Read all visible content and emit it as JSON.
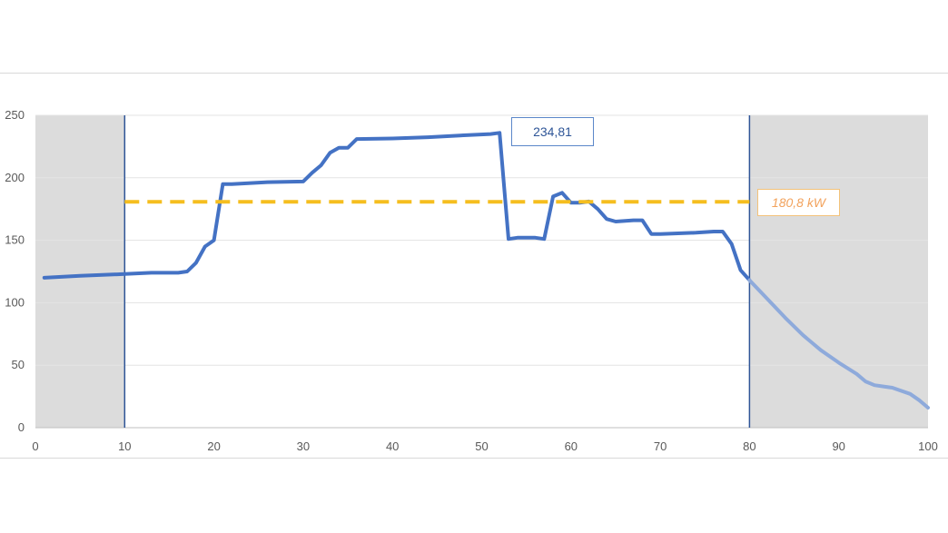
{
  "chart_data": {
    "type": "line",
    "xlim": [
      0,
      100
    ],
    "ylim": [
      0,
      250
    ],
    "x_ticks": [
      0,
      10,
      20,
      30,
      40,
      50,
      60,
      70,
      80,
      90,
      100
    ],
    "y_ticks": [
      0,
      50,
      100,
      150,
      200,
      250
    ],
    "grid": "horizontal",
    "shaded_ranges": [
      [
        0,
        10
      ],
      [
        80,
        100
      ]
    ],
    "vertical_lines": [
      10,
      80
    ],
    "series": [
      {
        "values": [
          [
            1,
            120
          ],
          [
            5,
            121.5
          ],
          [
            10,
            123
          ],
          [
            13,
            124
          ],
          [
            16,
            124
          ],
          [
            17,
            125
          ],
          [
            18,
            132
          ],
          [
            19,
            145
          ],
          [
            20,
            150
          ],
          [
            21,
            195
          ],
          [
            22,
            195
          ],
          [
            26,
            196.5
          ],
          [
            30,
            197
          ],
          [
            31,
            204
          ],
          [
            32,
            210
          ],
          [
            33,
            220
          ],
          [
            34,
            224
          ],
          [
            35,
            224
          ],
          [
            36,
            231
          ],
          [
            40,
            231.5
          ],
          [
            44,
            232.5
          ],
          [
            48,
            234
          ],
          [
            51,
            235
          ],
          [
            52,
            236
          ],
          [
            53,
            151
          ],
          [
            54,
            152
          ],
          [
            56,
            152
          ],
          [
            57,
            151
          ],
          [
            58,
            185
          ],
          [
            59,
            188
          ],
          [
            60,
            180
          ],
          [
            61,
            180
          ],
          [
            62,
            181
          ],
          [
            63,
            175
          ],
          [
            64,
            167
          ],
          [
            65,
            165
          ],
          [
            67,
            166
          ],
          [
            68,
            166
          ],
          [
            69,
            155
          ],
          [
            70,
            155
          ],
          [
            74,
            156
          ],
          [
            76,
            157
          ],
          [
            77,
            157
          ],
          [
            78,
            147
          ],
          [
            79,
            126
          ],
          [
            80,
            118
          ]
        ]
      },
      {
        "values": [
          [
            80,
            118
          ],
          [
            82,
            103
          ],
          [
            84,
            88
          ],
          [
            86,
            74
          ],
          [
            88,
            62
          ],
          [
            90,
            52
          ],
          [
            92,
            43
          ],
          [
            93,
            37
          ],
          [
            94,
            34
          ],
          [
            95,
            33
          ],
          [
            96,
            32
          ],
          [
            98,
            27
          ],
          [
            99,
            22
          ],
          [
            100,
            16
          ]
        ]
      }
    ],
    "reference_line": {
      "value": 180.8,
      "from": 10,
      "to": 80,
      "label": "180,8 kW"
    },
    "annotations": [
      {
        "text": "234,81",
        "x": 52,
        "y": 234.81
      }
    ]
  },
  "colors": {
    "main_line": "#4472c4",
    "faded_line": "#8eaadb",
    "reference_line": "#f5be1f",
    "shading": "#dcdcdc",
    "grid": "#e3e3e3"
  }
}
